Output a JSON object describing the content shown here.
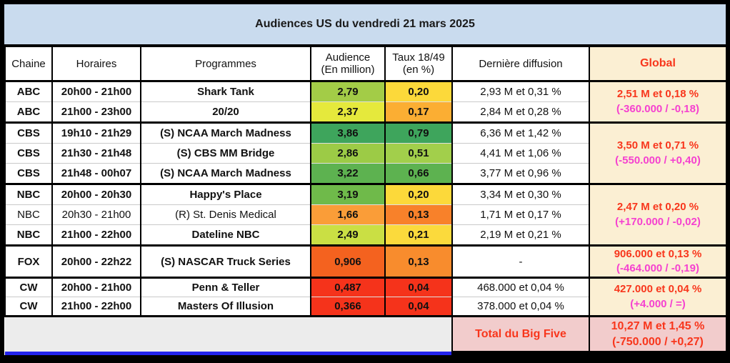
{
  "title": "Audiences US du vendredi 21 mars 2025",
  "header": {
    "chaine": "Chaine",
    "horaires": "Horaires",
    "programmes": "Programmes",
    "audience": [
      "Audience",
      "(En million)"
    ],
    "taux": [
      "Taux 18/49",
      "(en %)"
    ],
    "diffusion": "Dernière diffusion",
    "global": "Global"
  },
  "rows": [
    {
      "chaine": "ABC",
      "horaires": "20h00 - 21h00",
      "programme": "Shark Tank",
      "audience": "2,79",
      "audience_color": "#a3cc47",
      "taux": "0,20",
      "taux_color": "#fcd93a",
      "diffusion": "2,93 M et 0,31 %"
    },
    {
      "chaine": "ABC",
      "horaires": "21h00 - 23h00",
      "programme": "20/20",
      "audience": "2,37",
      "audience_color": "#e5e93c",
      "taux": "0,17",
      "taux_color": "#fbae33",
      "diffusion": "2,84 M et 0,28 %"
    },
    {
      "chaine": "CBS",
      "horaires": "19h10 - 21h29",
      "programme": "(S) NCAA March Madness",
      "audience": "3,86",
      "audience_color": "#3ea55c",
      "taux": "0,79",
      "taux_color": "#3ea55c",
      "diffusion": "6,36 M et 1,42 %"
    },
    {
      "chaine": "CBS",
      "horaires": "21h30 - 21h48",
      "programme": "(S) CBS MM Bridge",
      "audience": "2,86",
      "audience_color": "#9ccb46",
      "taux": "0,51",
      "taux_color": "#a2cf4b",
      "diffusion": "4,41 M et 1,06 %"
    },
    {
      "chaine": "CBS",
      "horaires": "21h48 - 00h07",
      "programme": "(S) NCAA March Madness",
      "audience": "3,22",
      "audience_color": "#5db250",
      "taux": "0,66",
      "taux_color": "#5db250",
      "diffusion": "3,77 M et 0,96 %"
    },
    {
      "chaine": "NBC",
      "horaires": "20h00 - 20h30",
      "programme": "Happy's Place",
      "audience": "3,19",
      "audience_color": "#6fba4a",
      "taux": "0,20",
      "taux_color": "#fcd93a",
      "diffusion": "3,34 M et 0,30 %"
    },
    {
      "chaine": "NBC",
      "horaires": "20h30 - 21h00",
      "programme": "(R) St. Denis Medical",
      "audience": "1,66",
      "audience_color": "#fa9d38",
      "taux": "0,13",
      "taux_color": "#f8812a",
      "diffusion": "1,71 M et 0,17 %"
    },
    {
      "chaine": "NBC",
      "horaires": "21h00 - 22h00",
      "programme": "Dateline NBC",
      "audience": "2,49",
      "audience_color": "#cadf44",
      "taux": "0,21",
      "taux_color": "#fbda3c",
      "diffusion": "2,19 M et 0,21 %"
    },
    {
      "chaine": "FOX",
      "horaires": "20h00 - 22h22",
      "programme": "(S) NASCAR Truck Series",
      "audience": "0,906",
      "audience_color": "#f4621f",
      "taux": "0,13",
      "taux_color": "#f88c2d",
      "diffusion": "-"
    },
    {
      "chaine": "CW",
      "horaires": "20h00 - 21h00",
      "programme": "Penn & Teller",
      "audience": "0,487",
      "audience_color": "#f5331b",
      "taux": "0,04",
      "taux_color": "#f5331b",
      "diffusion": "468.000 et 0,04 %"
    },
    {
      "chaine": "CW",
      "horaires": "21h00 - 22h00",
      "programme": "Masters Of Illusion",
      "audience": "0,366",
      "audience_color": "#f5331b",
      "taux": "0,04",
      "taux_color": "#f5331b",
      "diffusion": "378.000 et 0,04 %"
    }
  ],
  "globals": [
    {
      "line1": "2,51 M et 0,18 %",
      "line2": "(-360.000 / -0,18)"
    },
    {
      "line1": "3,50 M et 0,71 %",
      "line2": "(-550.000 / +0,40)"
    },
    {
      "line1": "2,47 M et 0,20 %",
      "line2": "(+170.000 / -0,02)"
    },
    {
      "line1": "906.000 et 0,13 %",
      "line2": "(-464.000 / -0,19)"
    },
    {
      "line1": "427.000 et 0,04 %",
      "line2": "(+4.000 / =)"
    }
  ],
  "total": {
    "label": "Total du Big Five",
    "line1": "10,27 M et 1,45 %",
    "line2": "(-750.000 / +0,27)"
  },
  "colors": {
    "title_bg": "#c9dbee",
    "global_bg": "#fbefd3",
    "total_bg": "#f2cccc",
    "red_text": "#f8361c",
    "magenta_text": "#f541d0",
    "empty_bg": "#ececec",
    "bottom_line_blue": "#2323ee"
  }
}
